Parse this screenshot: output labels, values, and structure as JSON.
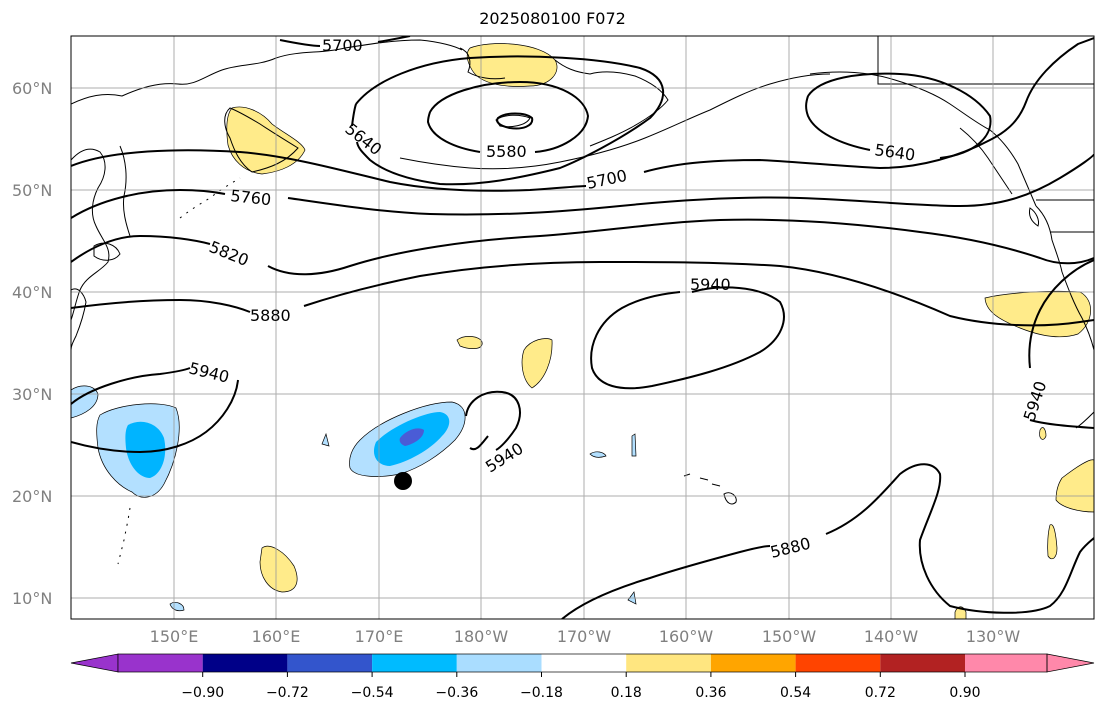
{
  "title": "2025080100 F072",
  "map": {
    "lat_labels": [
      "60°N",
      "50°N",
      "40°N",
      "30°N",
      "20°N",
      "10°N"
    ],
    "lon_labels": [
      "150°E",
      "160°E",
      "170°E",
      "180°W",
      "170°W",
      "160°W",
      "150°W",
      "140°W",
      "130°W"
    ],
    "contour_labels": [
      {
        "text": "5700"
      },
      {
        "text": "5640"
      },
      {
        "text": "5580"
      },
      {
        "text": "5700"
      },
      {
        "text": "5640"
      },
      {
        "text": "5760"
      },
      {
        "text": "5820"
      },
      {
        "text": "5880"
      },
      {
        "text": "5940"
      },
      {
        "text": "5940"
      },
      {
        "text": "5940"
      },
      {
        "text": "5940"
      },
      {
        "text": "5880"
      }
    ],
    "marker": {
      "label": "storm-center",
      "lon_e": 172.5,
      "lat": 21.5
    }
  },
  "colorbar": {
    "ticks": [
      "−0.90",
      "−0.72",
      "−0.54",
      "−0.36",
      "−0.18",
      "0.18",
      "0.36",
      "0.54",
      "0.72",
      "0.90"
    ],
    "colors": [
      "#9933cc",
      "#000088",
      "#3355cc",
      "#00bbff",
      "#aaddff",
      "#ffffff",
      "#ffe680",
      "#ffa500",
      "#ff4400",
      "#b22222",
      "#ff88aa"
    ],
    "extend": "both"
  },
  "fill_colors": {
    "yellow": "#ffeb8a",
    "light_blue": "#b3e0ff",
    "blue": "#00b4ff",
    "dark_blue": "#4a5cd6"
  }
}
